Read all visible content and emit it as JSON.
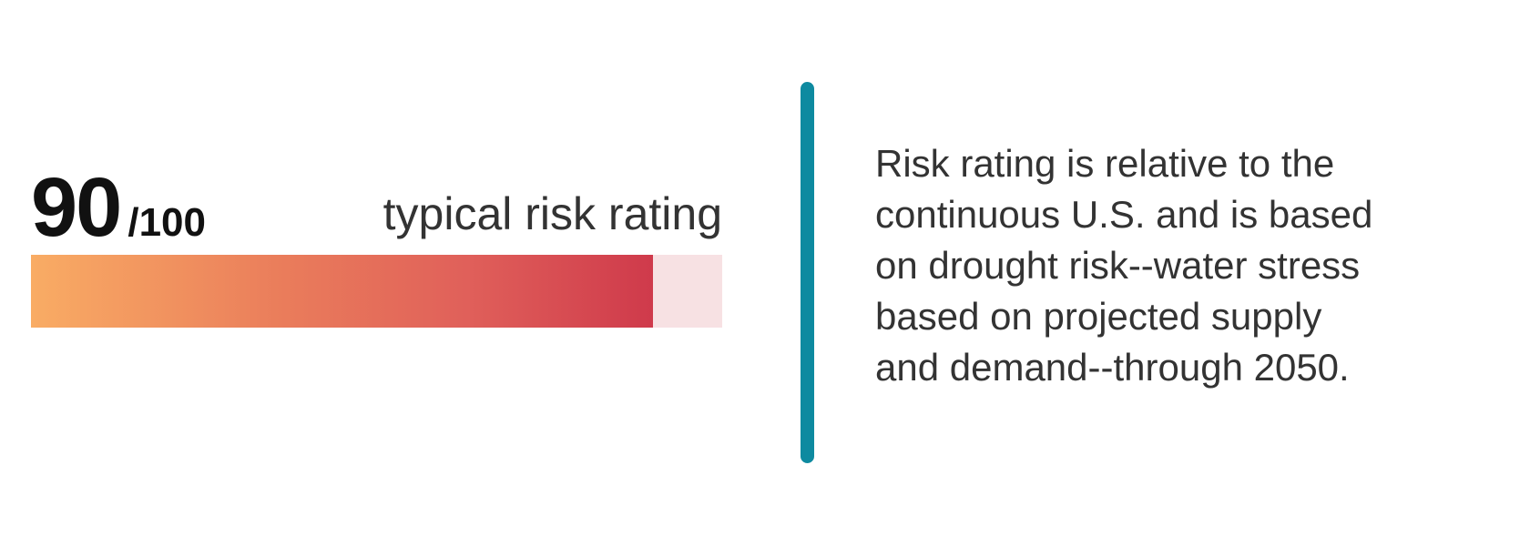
{
  "rating": {
    "score": "90",
    "out_of": "/100",
    "label": "typical risk rating",
    "fill_percent": 90,
    "colors": {
      "gradient_start": "#f9ac64",
      "gradient_end": "#cf3a4b",
      "track": "#f7e1e3"
    }
  },
  "divider_color": "#0e8aa0",
  "description": {
    "lines": [
      "Risk rating is relative to the",
      "continuous U.S. and is based",
      "on drought risk--water stress",
      "based on projected supply",
      "and demand--through 2050."
    ]
  }
}
